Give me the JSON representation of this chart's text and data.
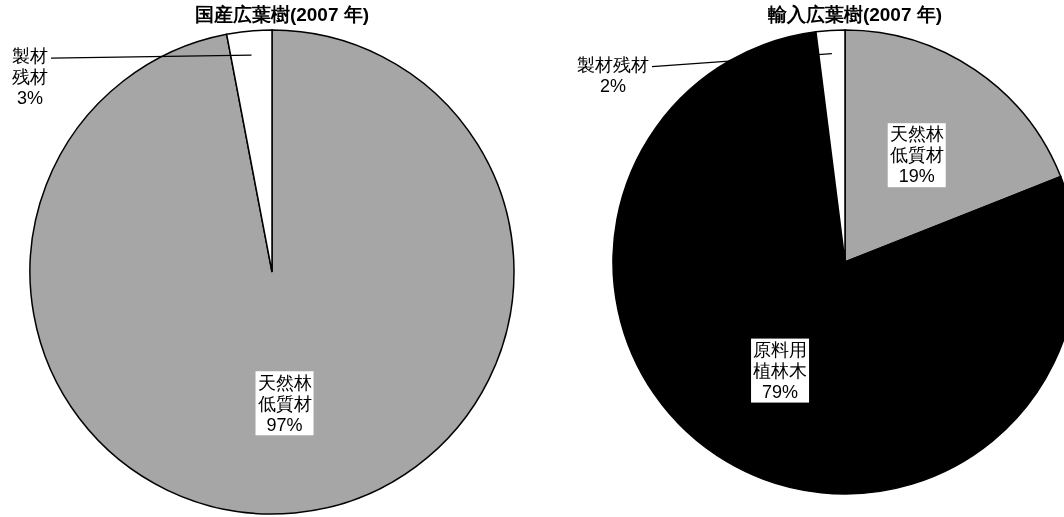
{
  "chart_data": [
    {
      "type": "pie",
      "title": "国産広葉樹(2007 年)",
      "categories": [
        "天然林低質材",
        "製材残材"
      ],
      "values": [
        97,
        3
      ],
      "colors": [
        "#a6a6a6",
        "#ffffff"
      ],
      "value_labels": [
        "97%",
        "3%"
      ]
    },
    {
      "type": "pie",
      "title": "輸入広葉樹(2007 年)",
      "categories": [
        "天然林低質材",
        "原料用植林木",
        "製材残材"
      ],
      "values": [
        19,
        79,
        2
      ],
      "colors": [
        "#a6a6a6",
        "#000000",
        "#ffffff"
      ],
      "value_labels": [
        "19%",
        "79%",
        "2%"
      ]
    }
  ]
}
